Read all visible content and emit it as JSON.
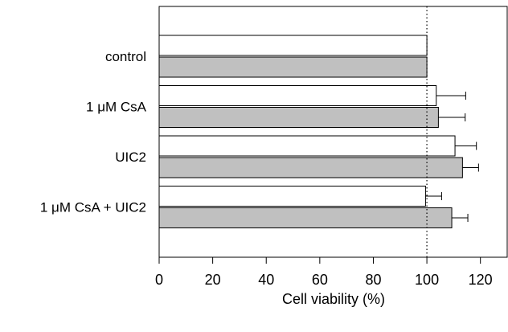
{
  "chart_data": {
    "type": "bar",
    "orientation": "horizontal",
    "title": "",
    "xlabel": "Cell viability (%)",
    "ylabel": "",
    "xlim": [
      0,
      130
    ],
    "xticks": [
      0,
      20,
      40,
      60,
      80,
      100,
      120
    ],
    "reference_line": 100,
    "grid": false,
    "categories": [
      "control",
      "1 μM CsA",
      "UIC2",
      "1 μM CsA + UIC2"
    ],
    "series": [
      {
        "fill": "#ffffff",
        "values": [
          100,
          103.5,
          110.5,
          99.5
        ],
        "errors": [
          0,
          11,
          8,
          6
        ]
      },
      {
        "fill": "#c0c0c0",
        "values": [
          100,
          104.3,
          113.3,
          109.3
        ],
        "errors": [
          0,
          10,
          6,
          6
        ]
      }
    ]
  }
}
